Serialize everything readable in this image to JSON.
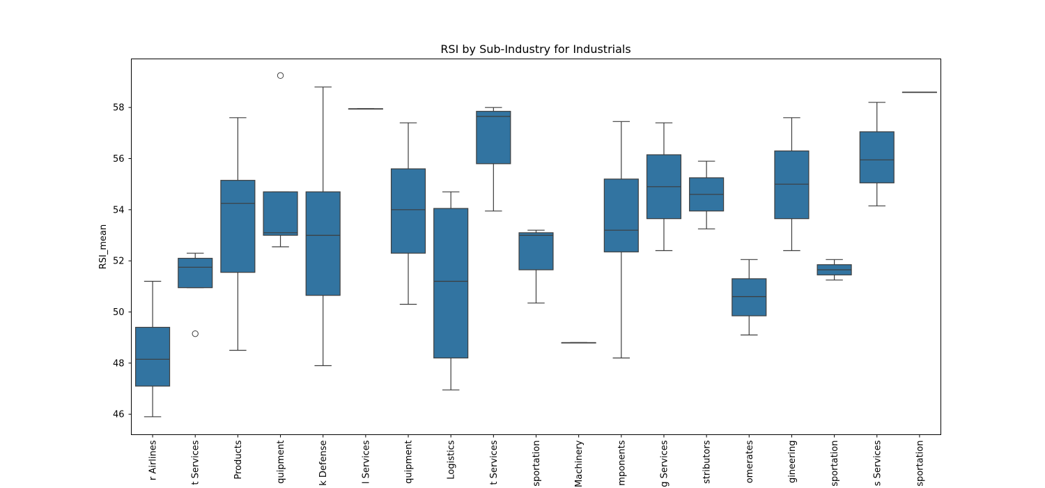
{
  "chart_data": {
    "type": "box",
    "title": "RSI by Sub-Industry for Industrials",
    "xlabel": "",
    "ylabel": "RSI_mean",
    "ylim": [
      45.2,
      59.9
    ],
    "yticks": [
      46,
      48,
      50,
      52,
      54,
      56,
      58
    ],
    "grid": false,
    "box_color": "#3274a1",
    "line_color": "#3d3d3d",
    "categories": [
      "r Airlines",
      "t Services",
      "Products",
      "quipment",
      "k Defense",
      "l Services",
      "quipment",
      "Logistics",
      "t Services",
      "sportation",
      "Machinery",
      "mponents",
      "g Services",
      "stributors",
      "omerates",
      "gineering",
      "sportation",
      "s Services",
      "sportation"
    ],
    "boxes": [
      {
        "whislo": 45.9,
        "q1": 47.1,
        "med": 48.15,
        "q3": 49.4,
        "whishi": 51.2,
        "fliers": []
      },
      {
        "whislo": 50.95,
        "q1": 50.95,
        "med": 51.75,
        "q3": 52.1,
        "whishi": 52.3,
        "fliers": [
          49.15
        ]
      },
      {
        "whislo": 48.5,
        "q1": 51.55,
        "med": 54.25,
        "q3": 55.15,
        "whishi": 57.6,
        "fliers": []
      },
      {
        "whislo": 52.55,
        "q1": 53.0,
        "med": 53.1,
        "q3": 54.7,
        "whishi": 54.7,
        "fliers": [
          59.25
        ]
      },
      {
        "whislo": 47.9,
        "q1": 50.65,
        "med": 53.0,
        "q3": 54.7,
        "whishi": 58.8,
        "fliers": []
      },
      {
        "whislo": 57.95,
        "q1": 57.95,
        "med": 57.95,
        "q3": 57.95,
        "whishi": 57.95,
        "fliers": []
      },
      {
        "whislo": 50.3,
        "q1": 52.3,
        "med": 54.0,
        "q3": 55.6,
        "whishi": 57.4,
        "fliers": []
      },
      {
        "whislo": 46.95,
        "q1": 48.2,
        "med": 51.2,
        "q3": 54.05,
        "whishi": 54.7,
        "fliers": []
      },
      {
        "whislo": 53.95,
        "q1": 55.8,
        "med": 57.65,
        "q3": 57.85,
        "whishi": 58.0,
        "fliers": []
      },
      {
        "whislo": 50.35,
        "q1": 51.65,
        "med": 53.0,
        "q3": 53.1,
        "whishi": 53.2,
        "fliers": []
      },
      {
        "whislo": 48.8,
        "q1": 48.8,
        "med": 48.8,
        "q3": 48.8,
        "whishi": 48.8,
        "fliers": []
      },
      {
        "whislo": 48.2,
        "q1": 52.35,
        "med": 53.2,
        "q3": 55.2,
        "whishi": 57.45,
        "fliers": []
      },
      {
        "whislo": 52.4,
        "q1": 53.65,
        "med": 54.9,
        "q3": 56.15,
        "whishi": 57.4,
        "fliers": []
      },
      {
        "whislo": 53.25,
        "q1": 53.95,
        "med": 54.6,
        "q3": 55.25,
        "whishi": 55.9,
        "fliers": []
      },
      {
        "whislo": 49.1,
        "q1": 49.85,
        "med": 50.6,
        "q3": 51.3,
        "whishi": 52.05,
        "fliers": []
      },
      {
        "whislo": 52.4,
        "q1": 53.65,
        "med": 55.0,
        "q3": 56.3,
        "whishi": 57.6,
        "fliers": []
      },
      {
        "whislo": 51.25,
        "q1": 51.45,
        "med": 51.65,
        "q3": 51.85,
        "whishi": 52.05,
        "fliers": []
      },
      {
        "whislo": 54.15,
        "q1": 55.05,
        "med": 55.95,
        "q3": 57.05,
        "whishi": 58.2,
        "fliers": []
      },
      {
        "whislo": 58.6,
        "q1": 58.6,
        "med": 58.6,
        "q3": 58.6,
        "whishi": 58.6,
        "fliers": []
      }
    ]
  }
}
